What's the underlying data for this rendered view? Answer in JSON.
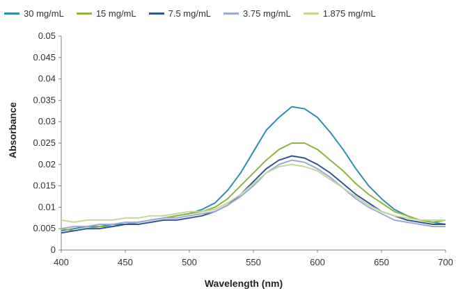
{
  "chart_data": {
    "type": "line",
    "xlabel": "Wavelength (nm)",
    "ylabel": "Absorbance",
    "xlim": [
      400,
      700
    ],
    "ylim": [
      0,
      0.05
    ],
    "xticks": [
      "400",
      "450",
      "500",
      "550",
      "600",
      "650",
      "700"
    ],
    "yticks": [
      "0",
      "0.005",
      "0.01",
      "0.015",
      "0.02",
      "0.025",
      "0.03",
      "0.035",
      "0.04",
      "0.045",
      "0.05"
    ],
    "grid": false,
    "legend_position": "top",
    "x": [
      400,
      410,
      420,
      430,
      440,
      450,
      460,
      470,
      480,
      490,
      500,
      510,
      520,
      530,
      540,
      550,
      560,
      570,
      580,
      590,
      600,
      610,
      620,
      630,
      640,
      650,
      660,
      670,
      680,
      690,
      700
    ],
    "series": [
      {
        "name": "30 mg/mL",
        "color": "#2e8fa6",
        "values": [
          0.0045,
          0.005,
          0.0055,
          0.0055,
          0.006,
          0.006,
          0.0065,
          0.007,
          0.0075,
          0.008,
          0.0085,
          0.0095,
          0.011,
          0.014,
          0.018,
          0.023,
          0.028,
          0.031,
          0.0335,
          0.033,
          0.031,
          0.0275,
          0.0235,
          0.019,
          0.015,
          0.012,
          0.0095,
          0.008,
          0.007,
          0.0065,
          0.006
        ]
      },
      {
        "name": "15 mg/mL",
        "color": "#8db43c",
        "values": [
          0.005,
          0.0045,
          0.005,
          0.0055,
          0.0055,
          0.006,
          0.0065,
          0.007,
          0.0075,
          0.008,
          0.0085,
          0.009,
          0.01,
          0.012,
          0.015,
          0.018,
          0.021,
          0.0235,
          0.025,
          0.025,
          0.0235,
          0.021,
          0.0185,
          0.0155,
          0.013,
          0.011,
          0.009,
          0.008,
          0.007,
          0.0065,
          0.007
        ]
      },
      {
        "name": "7.5 mg/mL",
        "color": "#2f5597",
        "values": [
          0.004,
          0.0045,
          0.005,
          0.005,
          0.0055,
          0.006,
          0.006,
          0.0065,
          0.007,
          0.007,
          0.0075,
          0.008,
          0.009,
          0.0105,
          0.013,
          0.016,
          0.019,
          0.021,
          0.022,
          0.0215,
          0.02,
          0.018,
          0.0155,
          0.013,
          0.011,
          0.009,
          0.008,
          0.007,
          0.0065,
          0.006,
          0.006
        ]
      },
      {
        "name": "3.75 mg/mL",
        "color": "#9aa9d8",
        "values": [
          0.005,
          0.0055,
          0.0055,
          0.006,
          0.006,
          0.0065,
          0.0065,
          0.007,
          0.0075,
          0.0075,
          0.008,
          0.0085,
          0.009,
          0.0105,
          0.0125,
          0.015,
          0.018,
          0.02,
          0.021,
          0.0205,
          0.019,
          0.017,
          0.0145,
          0.012,
          0.01,
          0.0085,
          0.007,
          0.0065,
          0.006,
          0.0055,
          0.0055
        ]
      },
      {
        "name": "1.875 mg/mL",
        "color": "#c3d898",
        "values": [
          0.007,
          0.0065,
          0.007,
          0.007,
          0.007,
          0.0075,
          0.0075,
          0.008,
          0.008,
          0.0085,
          0.009,
          0.009,
          0.0095,
          0.011,
          0.013,
          0.0155,
          0.018,
          0.0195,
          0.02,
          0.0195,
          0.0185,
          0.0165,
          0.0145,
          0.0125,
          0.0105,
          0.009,
          0.008,
          0.0075,
          0.007,
          0.007,
          0.007
        ]
      }
    ]
  }
}
